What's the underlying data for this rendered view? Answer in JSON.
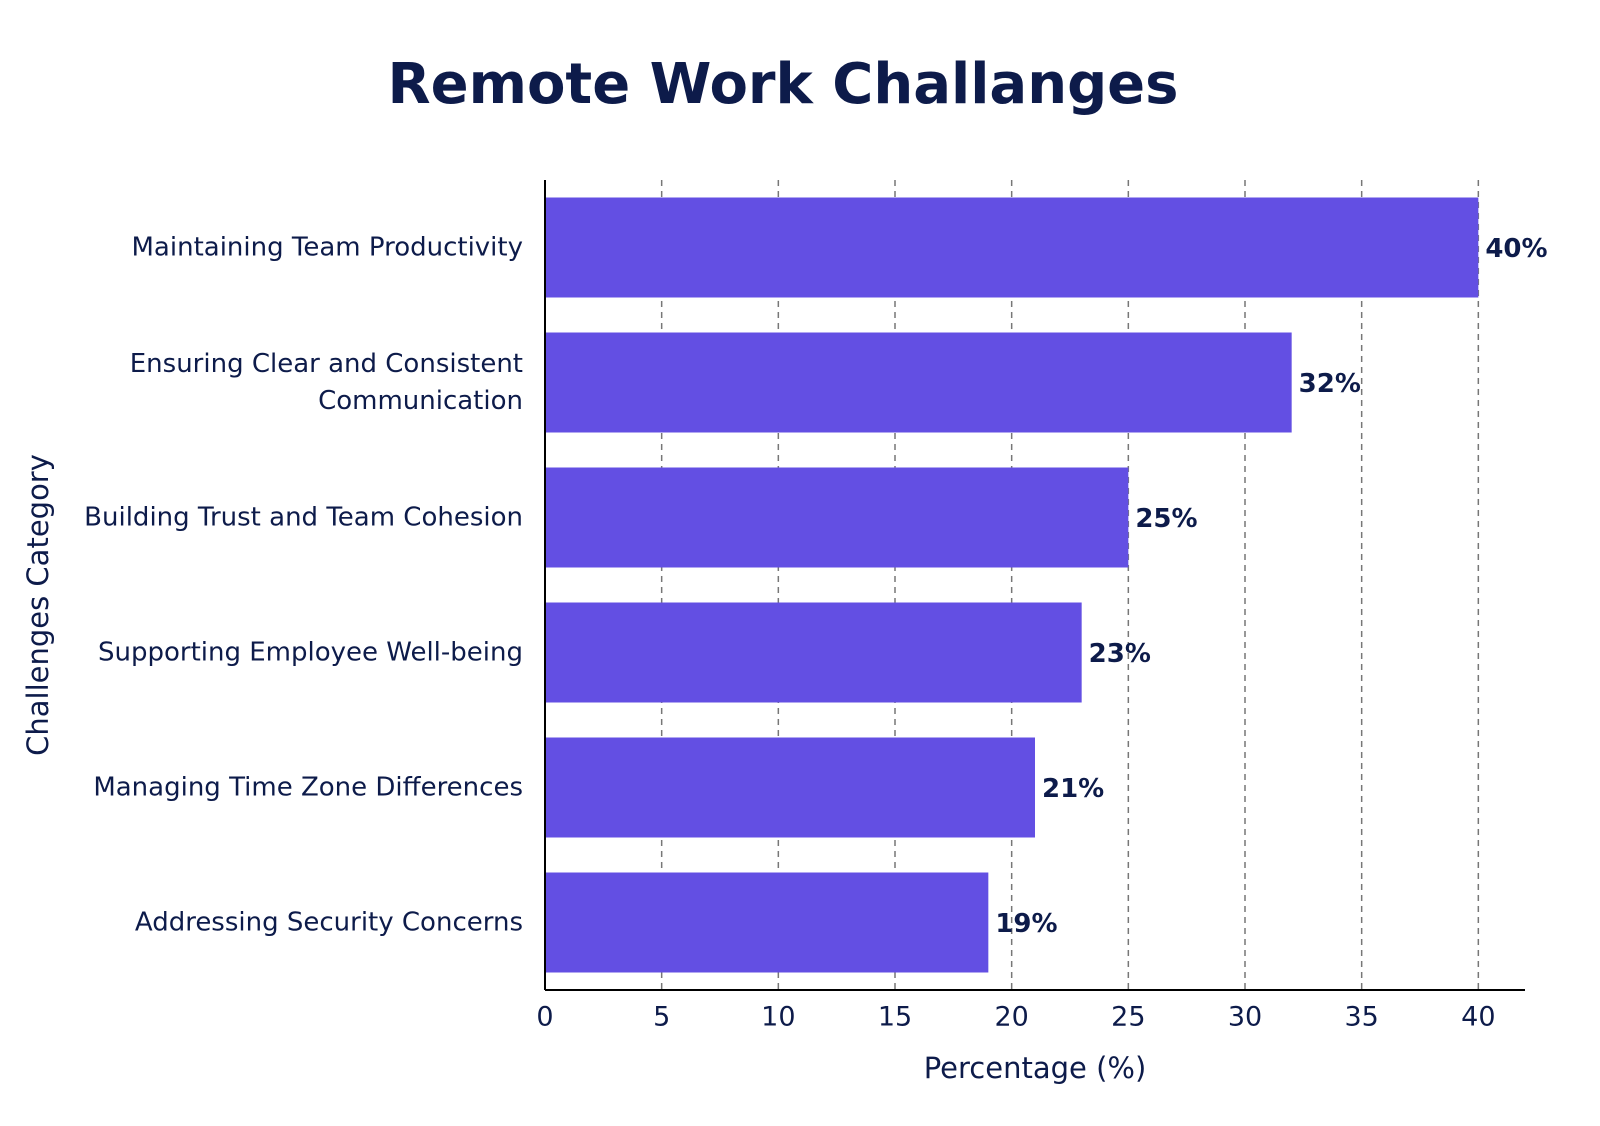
{
  "chart_data": {
    "type": "bar",
    "orientation": "horizontal",
    "title": "Remote Work Challanges",
    "x_label": "Percentage (%)",
    "y_label": "Challenges Category",
    "categories": [
      "Maintaining Team Productivity",
      "Ensuring Clear and Consistent Communication",
      "Building Trust and Team Cohesion",
      "Supporting Employee Well-being",
      "Managing Time Zone Differences",
      "Addressing Security Concerns"
    ],
    "values": [
      40,
      32,
      25,
      23,
      21,
      19
    ],
    "value_labels": [
      "40%",
      "32%",
      "25%",
      "23%",
      "21%",
      "19%"
    ],
    "color": "#634fe3",
    "xlim": [
      0,
      42
    ],
    "xticks": [
      0,
      5,
      10,
      15,
      20,
      25,
      30,
      35,
      40
    ],
    "grid": true
  }
}
